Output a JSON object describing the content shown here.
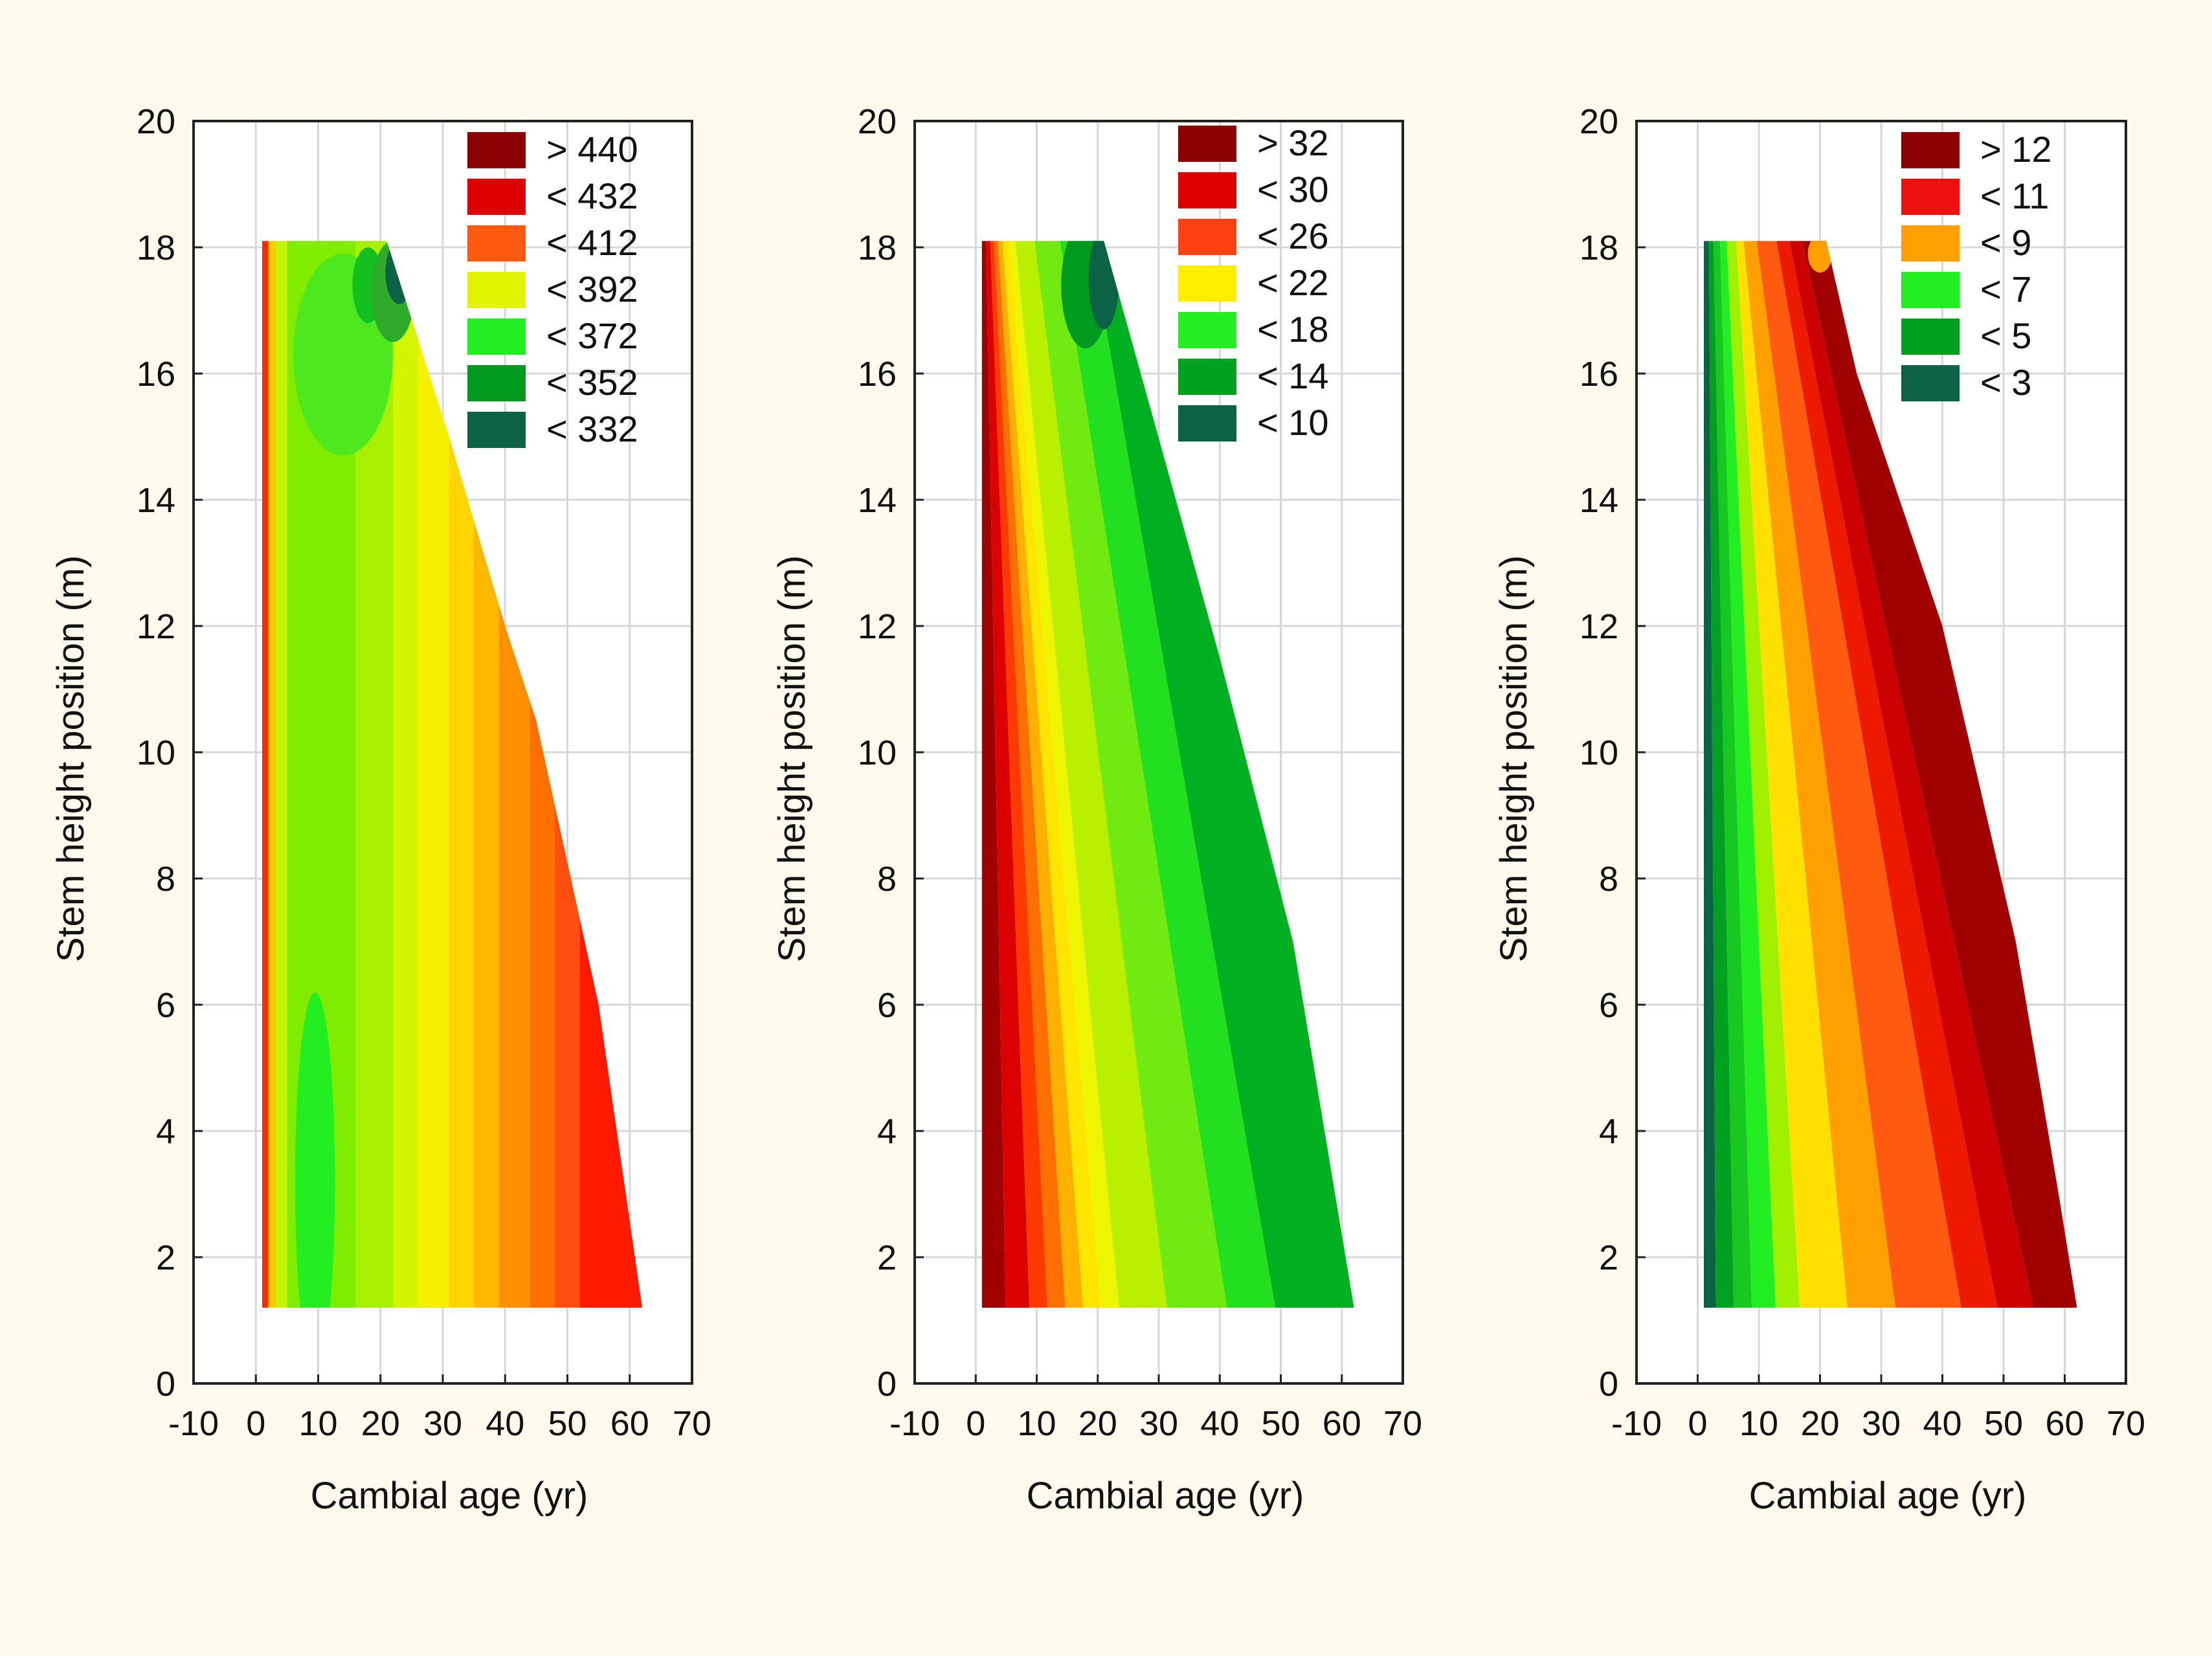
{
  "chart_data": [
    {
      "type": "heatmap",
      "subtype": "filled-contour",
      "title": "",
      "xlabel": "Cambial age (yr)",
      "ylabel": "Stem height position (m)",
      "xlim": [
        -10,
        70
      ],
      "ylim": [
        0,
        20
      ],
      "xticks": [
        "-10",
        "0",
        "10",
        "20",
        "30",
        "40",
        "50",
        "60",
        "70"
      ],
      "yticks": [
        "0",
        "2",
        "4",
        "6",
        "8",
        "10",
        "12",
        "14",
        "16",
        "18",
        "20"
      ],
      "grid": true,
      "legend_position": "top-right",
      "legend": [
        {
          "label": "> 440",
          "color": "#8b0000"
        },
        {
          "label": "< 432",
          "color": "#dd0000"
        },
        {
          "label": "< 412",
          "color": "#ff5a10"
        },
        {
          "label": "< 392",
          "color": "#e2f500"
        },
        {
          "label": "< 372",
          "color": "#22ee22"
        },
        {
          "label": "< 352",
          "color": "#009a1e"
        },
        {
          "label": "< 332",
          "color": "#0b6244"
        }
      ],
      "domain_outline": [
        [
          1,
          1.2
        ],
        [
          62,
          1.2
        ],
        [
          55,
          6
        ],
        [
          45,
          10.5
        ],
        [
          40,
          12
        ],
        [
          31,
          15
        ],
        [
          21,
          18.1
        ],
        [
          1,
          18.1
        ]
      ],
      "bands": [
        {
          "x_range": [
            1,
            2
          ],
          "color": "#ff2a00"
        },
        {
          "x_range": [
            2,
            3.2
          ],
          "color": "#ffcc00"
        },
        {
          "x_range": [
            3.2,
            5
          ],
          "color": "#c2f500"
        },
        {
          "x_range": [
            5,
            16
          ],
          "color": "#80ec00"
        },
        {
          "x_range": [
            16,
            22
          ],
          "color": "#a8f000"
        },
        {
          "x_range": [
            22,
            26
          ],
          "color": "#d4f500"
        },
        {
          "x_range": [
            26,
            31
          ],
          "color": "#f5f000"
        },
        {
          "x_range": [
            31,
            35
          ],
          "color": "#ffd500"
        },
        {
          "x_range": [
            35,
            39
          ],
          "color": "#ffb800"
        },
        {
          "x_range": [
            39,
            44
          ],
          "color": "#ff9000"
        },
        {
          "x_range": [
            44,
            48
          ],
          "color": "#ff7000"
        },
        {
          "x_range": [
            48,
            52
          ],
          "color": "#ff4e10"
        },
        {
          "x_range": [
            52,
            62
          ],
          "color": "#ff1a00"
        }
      ],
      "patches": [
        {
          "center": [
            9.5,
            3.2
          ],
          "radius": [
            3.2,
            3.0
          ],
          "color": "#22ee22"
        },
        {
          "center": [
            14,
            16.3
          ],
          "radius": [
            8,
            1.6
          ],
          "color": "#4ee81e"
        },
        {
          "center": [
            18,
            17.4
          ],
          "radius": [
            2.5,
            0.6
          ],
          "color": "#12c020"
        },
        {
          "center": [
            22,
            17.3
          ],
          "radius": [
            3.5,
            0.8
          ],
          "color": "#2faa2a"
        },
        {
          "center": [
            23,
            17.6
          ],
          "radius": [
            2.2,
            0.5
          ],
          "color": "#0b6244"
        }
      ]
    },
    {
      "type": "heatmap",
      "subtype": "filled-contour",
      "title": "",
      "xlabel": "Cambial age (yr)",
      "ylabel": "Stem height position (m)",
      "xlim": [
        -10,
        70
      ],
      "ylim": [
        0,
        20
      ],
      "xticks": [
        "-10",
        "0",
        "10",
        "20",
        "30",
        "40",
        "50",
        "60",
        "70"
      ],
      "yticks": [
        "0",
        "2",
        "4",
        "6",
        "8",
        "10",
        "12",
        "14",
        "16",
        "18",
        "20"
      ],
      "grid": true,
      "legend_position": "top-right",
      "legend": [
        {
          "label": "> 32",
          "color": "#8b0000"
        },
        {
          "label": "< 30",
          "color": "#dd0000"
        },
        {
          "label": "< 26",
          "color": "#ff4010"
        },
        {
          "label": "< 22",
          "color": "#ffee00"
        },
        {
          "label": "< 18",
          "color": "#22ee22"
        },
        {
          "label": "< 14",
          "color": "#00a020"
        },
        {
          "label": "< 10",
          "color": "#0b6244"
        }
      ],
      "domain_outline": [
        [
          1,
          1.2
        ],
        [
          62,
          1.2
        ],
        [
          52,
          7
        ],
        [
          40,
          11.5
        ],
        [
          21,
          18.1
        ],
        [
          1,
          18.1
        ]
      ],
      "bands_bottom_x": [
        1,
        5,
        9,
        12,
        15,
        18,
        21,
        24,
        32,
        42,
        50,
        62
      ],
      "bands_top_x": [
        1,
        1.6,
        2.2,
        2.7,
        3.3,
        4,
        5,
        6,
        9,
        13,
        18,
        21
      ],
      "bands_colors": [
        "#a00000",
        "#dd0000",
        "#ff3a00",
        "#ff7000",
        "#ffb000",
        "#ffe600",
        "#eef500",
        "#b8f000",
        "#70ea10",
        "#22e020",
        "#00b020"
      ],
      "patches": [
        {
          "center": [
            18,
            17.4
          ],
          "radius": [
            4,
            1.0
          ],
          "color": "#009a1e"
        },
        {
          "center": [
            21,
            17.5
          ],
          "radius": [
            2.5,
            0.8
          ],
          "color": "#0b6244"
        }
      ]
    },
    {
      "type": "heatmap",
      "subtype": "filled-contour",
      "title": "",
      "xlabel": "Cambial age (yr)",
      "ylabel": "Stem height position (m)",
      "xlim": [
        -10,
        70
      ],
      "ylim": [
        0,
        20
      ],
      "xticks": [
        "-10",
        "0",
        "10",
        "20",
        "30",
        "40",
        "50",
        "60",
        "70"
      ],
      "yticks": [
        "0",
        "2",
        "4",
        "6",
        "8",
        "10",
        "12",
        "14",
        "16",
        "18",
        "20"
      ],
      "grid": true,
      "legend_position": "top-right",
      "legend": [
        {
          "label": "> 12",
          "color": "#8b0000"
        },
        {
          "label": "< 11",
          "color": "#ee1010"
        },
        {
          "label": "< 9",
          "color": "#ffa000"
        },
        {
          "label": "< 7",
          "color": "#22ee22"
        },
        {
          "label": "< 5",
          "color": "#00a020"
        },
        {
          "label": "< 3",
          "color": "#0b6244"
        }
      ],
      "domain_outline": [
        [
          1,
          1.2
        ],
        [
          62,
          1.2
        ],
        [
          59,
          3
        ],
        [
          52,
          7
        ],
        [
          40,
          12
        ],
        [
          26,
          16
        ],
        [
          21,
          18.1
        ],
        [
          1,
          18.1
        ]
      ],
      "bands_bottom_x": [
        1,
        3,
        6,
        9,
        13,
        17,
        25,
        33,
        44,
        50,
        56,
        62
      ],
      "bands_top_x": [
        1,
        1.8,
        2.5,
        3.5,
        4.5,
        6,
        7,
        9,
        12,
        14,
        16,
        21
      ],
      "bands_colors": [
        "#0b6244",
        "#00a020",
        "#16c820",
        "#22ee22",
        "#a0f000",
        "#ffe000",
        "#ffa000",
        "#ff5a10",
        "#ee1a00",
        "#cc0000",
        "#a00000"
      ],
      "patches": [
        {
          "center": [
            20,
            17.9
          ],
          "radius": [
            2,
            0.3
          ],
          "color": "#ffa000"
        }
      ]
    }
  ]
}
